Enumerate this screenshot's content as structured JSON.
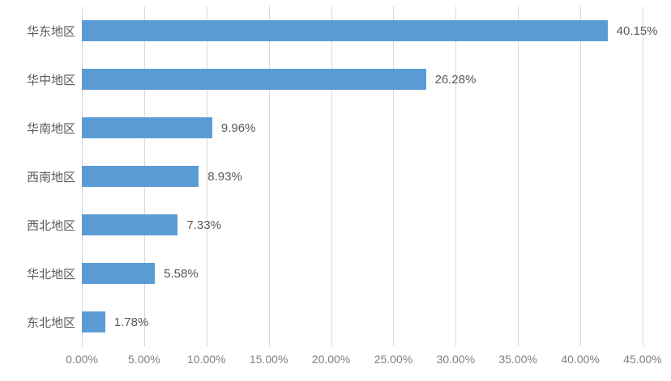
{
  "chart_data": {
    "type": "bar",
    "orientation": "horizontal",
    "title": "",
    "xlabel": "",
    "ylabel": "",
    "categories": [
      "华东地区",
      "华中地区",
      "华南地区",
      "西南地区",
      "西北地区",
      "华北地区",
      "东北地区"
    ],
    "values": [
      40.15,
      26.28,
      9.96,
      8.93,
      7.33,
      5.58,
      1.78
    ],
    "value_labels": [
      "40.15%",
      "26.28%",
      "9.96%",
      "8.93%",
      "7.33%",
      "5.58%",
      "1.78%"
    ],
    "x_ticks": [
      "0.00%",
      "5.00%",
      "10.00%",
      "15.00%",
      "20.00%",
      "25.00%",
      "30.00%",
      "35.00%",
      "40.00%",
      "45.00%"
    ],
    "x_tick_values": [
      0,
      5,
      10,
      15,
      20,
      25,
      30,
      35,
      40,
      45
    ],
    "xlim": [
      0,
      45
    ],
    "grid": "vertical",
    "legend": "none",
    "colors": {
      "bar": "#5b9bd5",
      "gridline": "#d9d9d9",
      "category_label": "#595959",
      "value_label": "#595959",
      "axis_tick": "#808080",
      "background": "#ffffff"
    }
  }
}
